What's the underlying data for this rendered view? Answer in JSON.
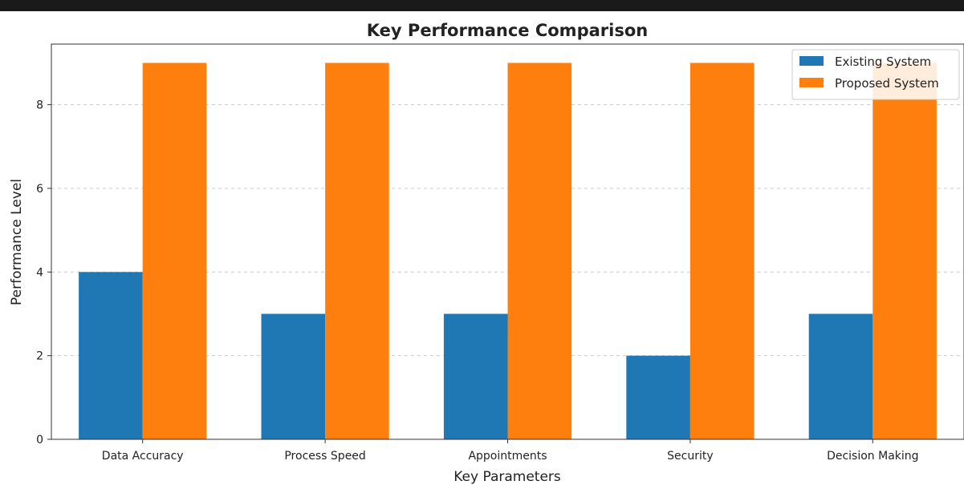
{
  "chart_data": {
    "type": "bar",
    "title": "Key Performance Comparison",
    "xlabel": "Key Parameters",
    "ylabel": "Performance Level",
    "categories": [
      "Data Accuracy",
      "Process Speed",
      "Appointments",
      "Security",
      "Decision Making"
    ],
    "series": [
      {
        "name": "Existing System",
        "color": "#1f77b4",
        "values": [
          4,
          3,
          3,
          2,
          3
        ]
      },
      {
        "name": "Proposed System",
        "color": "#ff7f0e",
        "values": [
          9,
          9,
          9,
          9,
          9
        ]
      }
    ],
    "ylim": [
      0,
      9.45
    ],
    "yticks": [
      0,
      2,
      4,
      6,
      8
    ],
    "grid": "y-dashed",
    "legend_position": "top-right"
  }
}
